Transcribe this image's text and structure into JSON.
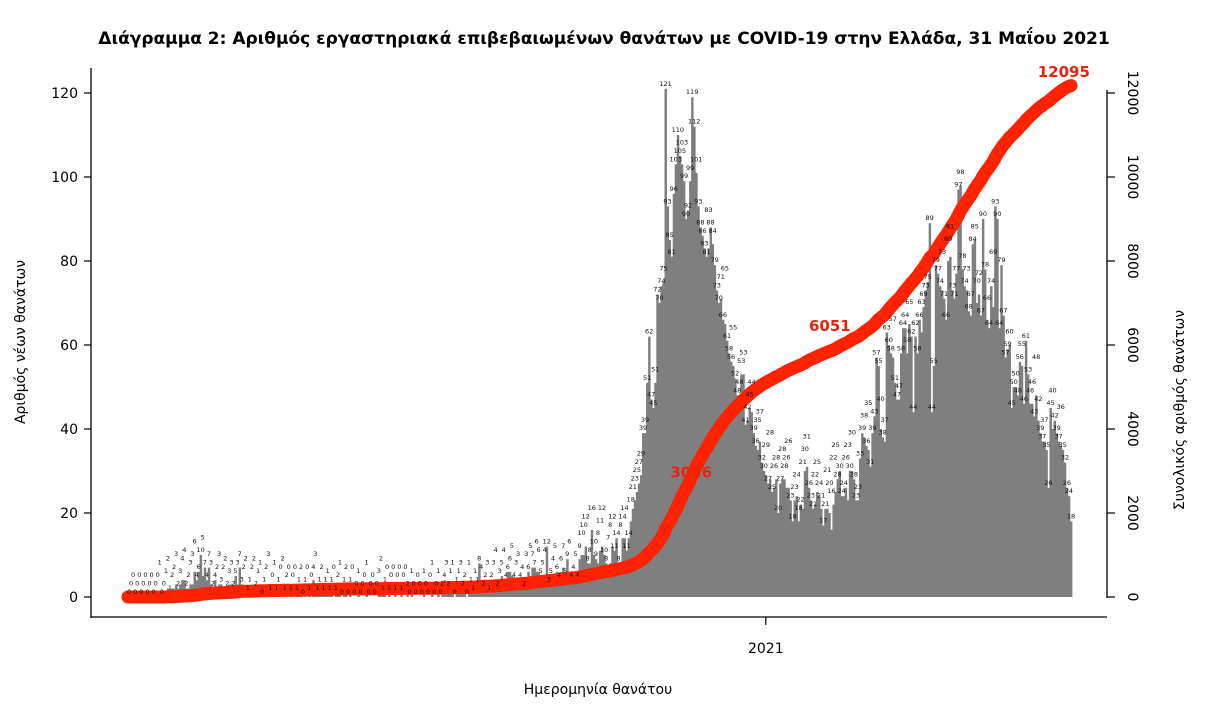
{
  "chart_data": {
    "type": "bar",
    "title": "Διάγραμμα 2: Αριθμός εργαστηριακά επιβεβαιωμένων θανάτων με COVID-19 στην Ελλάδα, 31 Μαΐου 2021",
    "xlabel": "Ημερομηνία θανάτου",
    "ylabel": "Αριθμός νέων θανάτων",
    "y2label": "Συνολικός αριθμός θανάτων",
    "ylim": [
      0,
      120
    ],
    "y2lim": [
      0,
      12000
    ],
    "yticks": [
      "0",
      "20",
      "40",
      "60",
      "80",
      "100",
      "120"
    ],
    "y2ticks": [
      "0",
      "2000",
      "4000",
      "6000",
      "8000",
      "10000",
      "12000"
    ],
    "xticks": [
      {
        "label": "2021",
        "day_index": 310
      }
    ],
    "grid": false,
    "bar_color": "#7f7f7f",
    "line_color": "#ff2200",
    "series": [
      {
        "type": "bar",
        "axis": "left",
        "values": [
          0,
          0,
          0,
          0,
          0,
          0,
          0,
          0,
          0,
          0,
          0,
          0,
          0,
          0,
          0,
          1,
          0,
          0,
          1,
          2,
          1,
          2,
          2,
          3,
          2,
          3,
          4,
          4,
          2,
          2,
          3,
          3,
          6,
          4,
          6,
          10,
          5,
          7,
          4,
          7,
          3,
          2,
          4,
          2,
          3,
          3,
          2,
          2,
          2,
          3,
          3,
          2,
          5,
          3,
          7,
          3,
          2,
          2,
          1,
          1,
          2,
          2,
          2,
          1,
          1,
          0,
          1,
          2,
          3,
          1,
          0,
          1,
          1,
          1,
          0,
          2,
          1,
          2,
          0,
          1,
          0,
          0,
          1,
          1,
          2,
          0,
          1,
          0,
          1,
          0,
          4,
          3,
          1,
          1,
          2,
          1,
          1,
          1,
          1,
          1,
          0,
          1,
          2,
          1,
          0,
          1,
          2,
          0,
          1,
          0,
          0,
          0,
          1,
          0,
          0,
          0,
          1,
          0,
          0,
          0,
          0,
          0,
          3,
          2,
          1,
          1,
          0,
          1,
          0,
          0,
          1,
          0,
          0,
          1,
          0,
          0,
          2,
          0,
          1,
          0,
          0,
          0,
          0,
          0,
          1,
          0,
          0,
          0,
          1,
          0,
          0,
          1,
          0,
          2,
          4,
          3,
          2,
          1,
          1,
          0,
          1,
          1,
          3,
          2,
          2,
          0,
          1,
          1,
          1,
          1,
          1,
          8,
          4,
          2,
          2,
          3,
          1,
          2,
          3,
          4,
          2,
          3,
          5,
          4,
          4,
          6,
          6,
          5,
          4,
          3,
          3,
          4,
          4,
          2,
          3,
          6,
          5,
          7,
          7,
          6,
          6,
          5,
          5,
          4,
          12,
          3,
          5,
          4,
          5,
          6,
          4,
          6,
          7,
          5,
          9,
          6,
          4,
          4,
          5,
          4,
          9,
          10,
          10,
          12,
          8,
          8,
          16,
          10,
          9,
          8,
          11,
          12,
          10,
          8,
          7,
          8,
          12,
          11,
          14,
          8,
          8,
          14,
          14,
          11,
          14,
          18,
          21,
          23,
          25,
          27,
          29,
          39,
          39,
          51,
          62,
          47,
          45,
          51,
          72,
          70,
          74,
          75,
          121,
          93,
          85,
          81,
          96,
          103,
          110,
          105,
          103,
          99,
          90,
          92,
          99,
          119,
          112,
          101,
          93,
          88,
          86,
          83,
          81,
          83,
          88,
          84,
          79,
          73,
          70,
          71,
          66,
          65,
          61,
          58,
          56,
          55,
          52,
          48,
          48,
          53,
          53,
          41,
          42,
          45,
          44,
          39,
          36,
          35,
          37,
          32,
          30,
          29,
          27,
          28,
          25,
          26,
          28,
          20,
          27,
          28,
          28,
          26,
          26,
          23,
          18,
          23,
          24,
          18,
          22,
          21,
          30,
          31,
          26,
          23,
          21,
          22,
          25,
          24,
          21,
          17,
          21,
          21,
          20,
          16,
          22,
          25,
          28,
          30,
          24,
          24,
          26,
          23,
          30,
          30,
          28,
          23,
          23,
          33,
          39,
          38,
          36,
          35,
          31,
          39,
          43,
          57,
          55,
          40,
          38,
          37,
          63,
          60,
          58,
          57,
          51,
          47,
          47,
          58,
          64,
          64,
          58,
          65,
          62,
          44,
          62,
          58,
          66,
          63,
          69,
          73,
          75,
          89,
          44,
          55,
          79,
          77,
          74,
          73,
          71,
          66,
          80,
          81,
          73,
          71,
          77,
          97,
          98,
          78,
          74,
          73,
          68,
          67,
          84,
          85,
          70,
          72,
          67,
          90,
          78,
          66,
          64,
          74,
          69,
          93,
          90,
          64,
          79,
          67,
          57,
          59,
          60,
          45,
          50,
          50,
          48,
          56,
          55,
          46,
          61,
          53,
          46,
          46,
          43,
          48,
          42,
          39,
          37,
          37,
          35,
          26,
          45,
          40,
          42,
          39,
          37,
          36,
          35,
          32,
          26,
          24,
          18
        ]
      },
      {
        "type": "line",
        "axis": "right",
        "cumulative_of": "bars"
      }
    ],
    "annotations": [
      {
        "text": "3036",
        "value": 3036
      },
      {
        "text": "6051",
        "value": 6051
      },
      {
        "text": "12095",
        "value": 12095
      }
    ]
  }
}
